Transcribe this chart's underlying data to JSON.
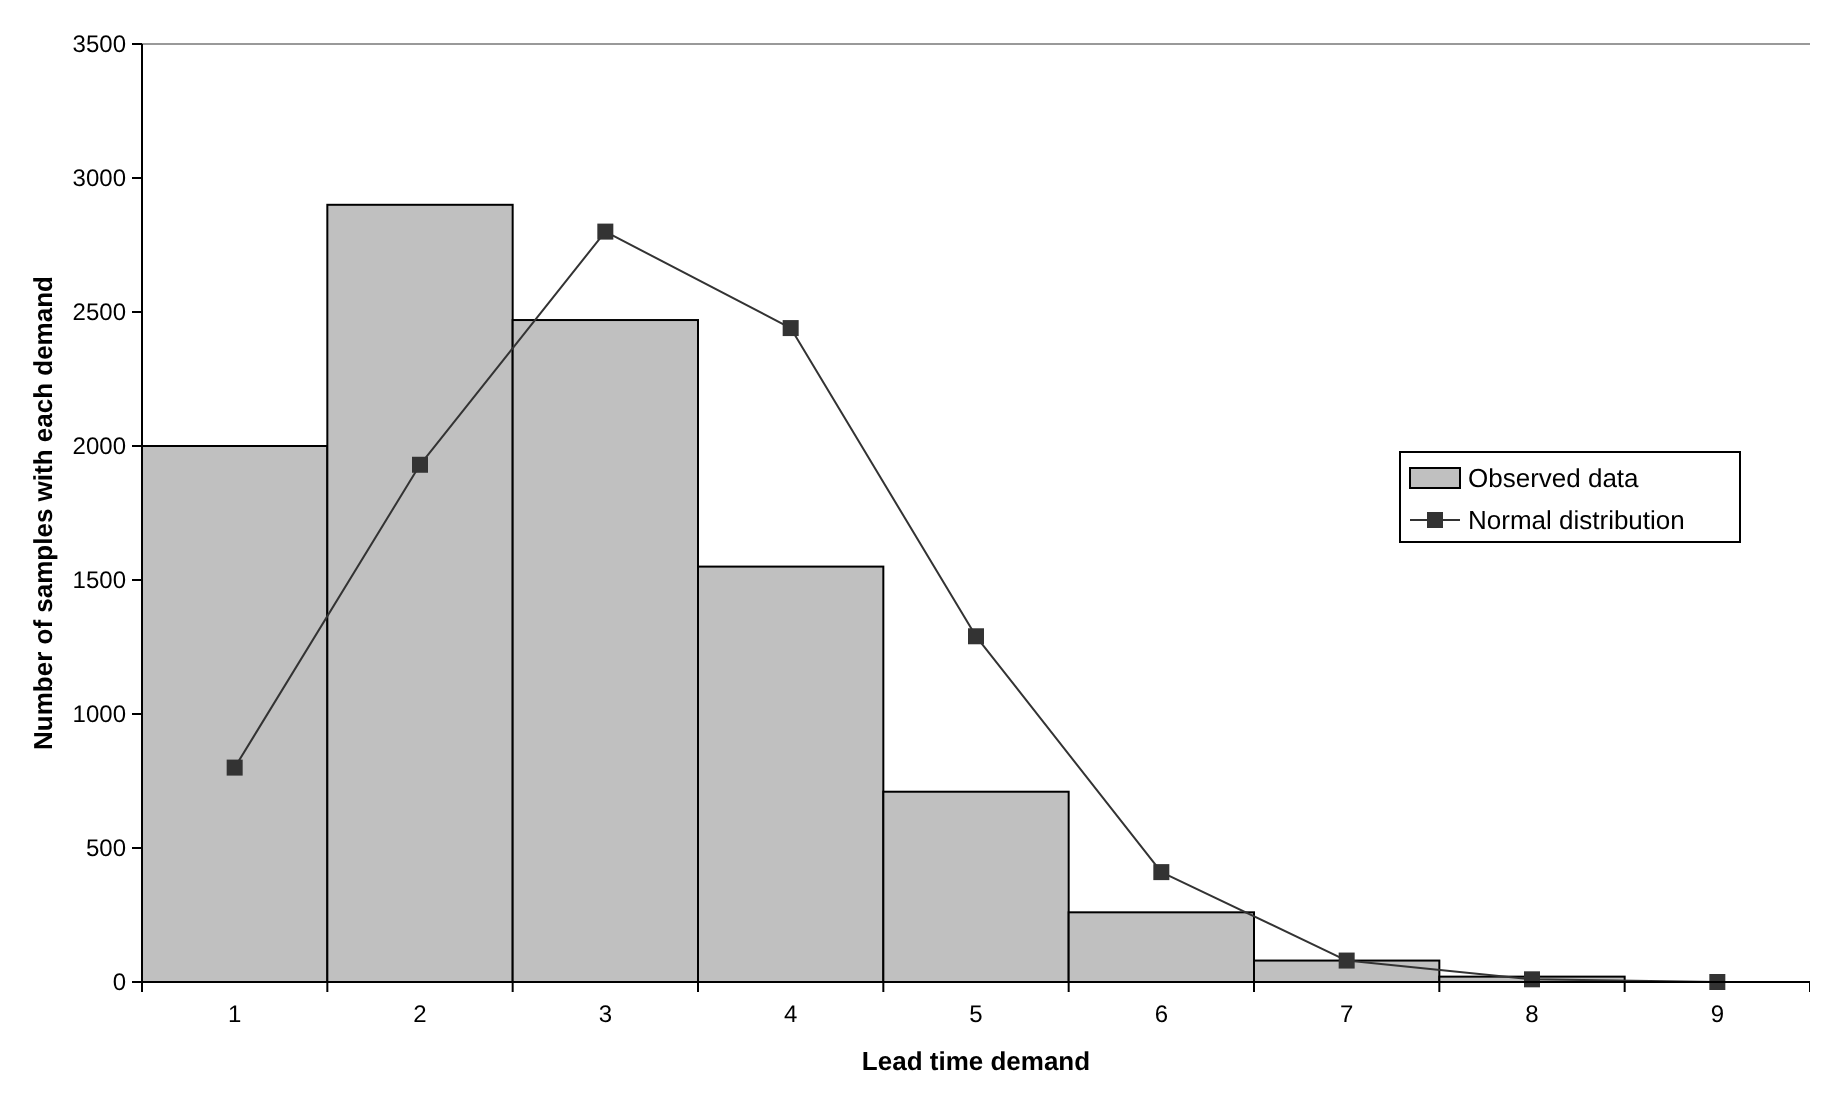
{
  "chart_data": {
    "type": "bar",
    "xlabel": "Lead time demand",
    "ylabel": "Number of samples with each demand",
    "categories": [
      "1",
      "2",
      "3",
      "4",
      "5",
      "6",
      "7",
      "8",
      "9"
    ],
    "series": [
      {
        "name": "Observed data",
        "color": "#c0c0c0",
        "values": [
          2000,
          2900,
          2470,
          1550,
          710,
          260,
          80,
          20,
          0
        ]
      },
      {
        "name": "Normal distribution",
        "type": "line",
        "color": "#333333",
        "marker": "square",
        "values": [
          800,
          1930,
          2800,
          2440,
          1290,
          410,
          80,
          10,
          0
        ]
      }
    ],
    "ylim": [
      0,
      3500
    ],
    "yticks": [
      0,
      500,
      1000,
      1500,
      2000,
      2500,
      3000,
      3500
    ],
    "legend": "right",
    "grid": false
  }
}
